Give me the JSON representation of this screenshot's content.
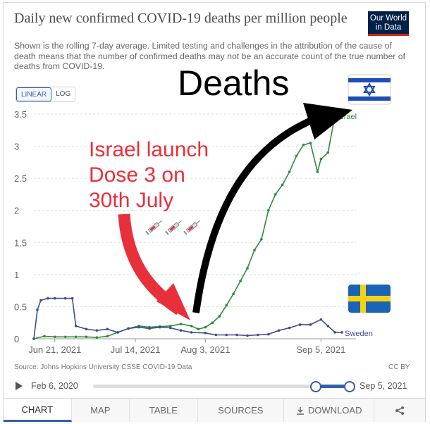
{
  "header": {
    "title": "Daily new confirmed COVID-19 deaths per million people",
    "subtitle": "Shown is the rolling 7-day average. Limited testing and challenges in the attribution of the cause of death means that the number of confirmed deaths may not be an accurate count of the true number of deaths from COVID-19.",
    "logo_line1": "Our World",
    "logo_line2": "in Data"
  },
  "scale_toggle": {
    "linear": "LINEAR",
    "log": "LOG",
    "selected": "linear"
  },
  "annotations": {
    "deaths": "Deaths",
    "launch_line1": "Israel launch",
    "launch_line2": "Dose 3 on",
    "launch_line3": "30th July",
    "arrow_color_red": "#e8303a",
    "arrow_color_black": "#000000",
    "syringe_icon": "syringe-icon",
    "flag_israel": "israel-flag-icon",
    "flag_sweden": "sweden-flag-icon"
  },
  "chart_data": {
    "type": "line",
    "title": "Daily new confirmed COVID-19 deaths per million people",
    "xlabel": "",
    "ylabel": "",
    "ylim": [
      0,
      3.5
    ],
    "yticks": [
      "0",
      "0.5",
      "1",
      "1.5",
      "2",
      "2.5",
      "3",
      "3.5"
    ],
    "xticks": [
      "Jun 21, 2021",
      "Jul 14, 2021",
      "Aug 3, 2021",
      "Sep 5, 2021"
    ],
    "x_start": "2021-06-15",
    "x_end": "2021-09-15",
    "grid": "horizontal dashed",
    "series": [
      {
        "name": "Israel",
        "color": "#2e8b3a",
        "points": [
          [
            "2021-06-15",
            0.0
          ],
          [
            "2021-06-18",
            0.04
          ],
          [
            "2021-06-21",
            0.03
          ],
          [
            "2021-06-24",
            0.03
          ],
          [
            "2021-06-27",
            0.03
          ],
          [
            "2021-06-30",
            0.03
          ],
          [
            "2021-07-03",
            0.02
          ],
          [
            "2021-07-06",
            0.04
          ],
          [
            "2021-07-09",
            0.1
          ],
          [
            "2021-07-12",
            0.16
          ],
          [
            "2021-07-15",
            0.2
          ],
          [
            "2021-07-18",
            0.18
          ],
          [
            "2021-07-21",
            0.19
          ],
          [
            "2021-07-24",
            0.2
          ],
          [
            "2021-07-27",
            0.23
          ],
          [
            "2021-07-30",
            0.2
          ],
          [
            "2021-08-01",
            0.15
          ],
          [
            "2021-08-03",
            0.18
          ],
          [
            "2021-08-05",
            0.25
          ],
          [
            "2021-08-07",
            0.35
          ],
          [
            "2021-08-09",
            0.52
          ],
          [
            "2021-08-11",
            0.7
          ],
          [
            "2021-08-13",
            0.9
          ],
          [
            "2021-08-15",
            1.1
          ],
          [
            "2021-08-17",
            1.38
          ],
          [
            "2021-08-19",
            1.55
          ],
          [
            "2021-08-21",
            2.0
          ],
          [
            "2021-08-23",
            2.25
          ],
          [
            "2021-08-25",
            2.4
          ],
          [
            "2021-08-27",
            2.6
          ],
          [
            "2021-08-29",
            2.85
          ],
          [
            "2021-08-31",
            3.02
          ],
          [
            "2021-09-02",
            3.05
          ],
          [
            "2021-09-04",
            2.6
          ],
          [
            "2021-09-05",
            2.8
          ],
          [
            "2021-09-07",
            2.9
          ],
          [
            "2021-09-09",
            3.48
          ]
        ]
      },
      {
        "name": "Sweden",
        "color": "#3f4e8c",
        "points": [
          [
            "2021-06-15",
            0.0
          ],
          [
            "2021-06-16",
            0.45
          ],
          [
            "2021-06-17",
            0.6
          ],
          [
            "2021-06-19",
            0.63
          ],
          [
            "2021-06-21",
            0.63
          ],
          [
            "2021-06-24",
            0.63
          ],
          [
            "2021-06-26",
            0.63
          ],
          [
            "2021-06-27",
            0.2
          ],
          [
            "2021-06-30",
            0.15
          ],
          [
            "2021-07-03",
            0.13
          ],
          [
            "2021-07-06",
            0.15
          ],
          [
            "2021-07-09",
            0.1
          ],
          [
            "2021-07-12",
            0.16
          ],
          [
            "2021-07-15",
            0.18
          ],
          [
            "2021-07-18",
            0.16
          ],
          [
            "2021-07-21",
            0.18
          ],
          [
            "2021-07-24",
            0.17
          ],
          [
            "2021-07-27",
            0.13
          ],
          [
            "2021-07-30",
            0.1
          ],
          [
            "2021-08-03",
            0.09
          ],
          [
            "2021-08-06",
            0.06
          ],
          [
            "2021-08-09",
            0.06
          ],
          [
            "2021-08-12",
            0.06
          ],
          [
            "2021-08-15",
            0.05
          ],
          [
            "2021-08-18",
            0.06
          ],
          [
            "2021-08-21",
            0.07
          ],
          [
            "2021-08-24",
            0.13
          ],
          [
            "2021-08-27",
            0.17
          ],
          [
            "2021-08-30",
            0.22
          ],
          [
            "2021-09-02",
            0.22
          ],
          [
            "2021-09-05",
            0.3
          ],
          [
            "2021-09-07",
            0.2
          ],
          [
            "2021-09-09",
            0.1
          ],
          [
            "2021-09-11",
            0.1
          ]
        ]
      }
    ]
  },
  "footer": {
    "source": "Source: Johns Hopkins University CSSE COVID-19 Data",
    "license": "CC BY"
  },
  "timeline": {
    "start_label": "Feb 6, 2020",
    "end_label": "Sep 5, 2021",
    "play_icon": "play-icon"
  },
  "tabs": [
    {
      "label": "CHART",
      "active": true
    },
    {
      "label": "MAP",
      "active": false
    },
    {
      "label": "TABLE",
      "active": false
    },
    {
      "label": "SOURCES",
      "active": false
    },
    {
      "label": "DOWNLOAD",
      "active": false
    }
  ]
}
